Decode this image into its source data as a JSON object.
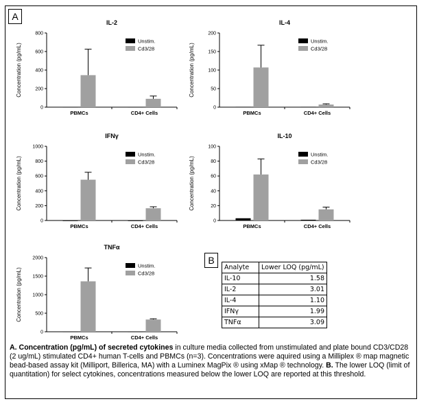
{
  "figure": {
    "panel_a_tag": "A",
    "panel_b_tag": "B"
  },
  "colors": {
    "unstim": "#000000",
    "stim": "#a0a0a0",
    "axis": "#000000"
  },
  "chart_data": [
    {
      "type": "bar",
      "title": "IL-2",
      "ylabel": "Concentration (pg/mL)",
      "xlabel": "",
      "categories": [
        "PBMCs",
        "CD4+ Cells"
      ],
      "ylim": [
        0,
        800
      ],
      "yticks": [
        0,
        200,
        400,
        600,
        800
      ],
      "legend_position": "top-right",
      "series": [
        {
          "name": "Unstim.",
          "values": [
            2,
            2
          ],
          "errors": [
            0,
            0
          ]
        },
        {
          "name": "Cd3/28",
          "values": [
            345,
            90
          ],
          "errors": [
            280,
            30
          ]
        }
      ]
    },
    {
      "type": "bar",
      "title": "IL-4",
      "ylabel": "Concentration (pg/mL)",
      "xlabel": "",
      "categories": [
        "PBMCs",
        "CD4+ Cells"
      ],
      "ylim": [
        0,
        200
      ],
      "yticks": [
        0,
        50,
        100,
        150,
        200
      ],
      "legend_position": "top-right",
      "series": [
        {
          "name": "Unstim.",
          "values": [
            1,
            1
          ],
          "errors": [
            0,
            0
          ]
        },
        {
          "name": "Cd3/28",
          "values": [
            107,
            7
          ],
          "errors": [
            60,
            2
          ]
        }
      ]
    },
    {
      "type": "bar",
      "title": "IFNγ",
      "ylabel": "Concentration (pg/mL)",
      "xlabel": "",
      "categories": [
        "PBMCs",
        "CD4+ Cells"
      ],
      "ylim": [
        0,
        1000
      ],
      "yticks": [
        0,
        200,
        400,
        600,
        800,
        1000
      ],
      "legend_position": "top-right",
      "series": [
        {
          "name": "Unstim.",
          "values": [
            0,
            0
          ],
          "errors": [
            0,
            0
          ]
        },
        {
          "name": "Cd3/28",
          "values": [
            550,
            165
          ],
          "errors": [
            100,
            20
          ]
        }
      ]
    },
    {
      "type": "bar",
      "title": "IL-10",
      "ylabel": "Concentration (pg/mL)",
      "xlabel": "",
      "categories": [
        "PBMCs",
        "CD4+ Cells"
      ],
      "ylim": [
        0,
        100
      ],
      "yticks": [
        0,
        20,
        40,
        60,
        80,
        100
      ],
      "legend_position": "top-right",
      "series": [
        {
          "name": "Unstim.",
          "values": [
            3,
            1
          ],
          "errors": [
            0,
            0
          ]
        },
        {
          "name": "Cd3/28",
          "values": [
            62,
            15
          ],
          "errors": [
            21,
            3
          ]
        }
      ]
    },
    {
      "type": "bar",
      "title": "TNFα",
      "ylabel": "Concentration (pg/mL)",
      "xlabel": "",
      "categories": [
        "PBMCs",
        "CD4+ Cells"
      ],
      "ylim": [
        0,
        2000
      ],
      "yticks": [
        0,
        500,
        1000,
        1500,
        2000
      ],
      "legend_position": "top-right",
      "series": [
        {
          "name": "Unstim.",
          "values": [
            5,
            5
          ],
          "errors": [
            0,
            0
          ]
        },
        {
          "name": "Cd3/28",
          "values": [
            1360,
            330
          ],
          "errors": [
            360,
            20
          ]
        }
      ]
    }
  ],
  "loq_table": {
    "headers": [
      "Analyte",
      "Lower LOQ (pg/mL)"
    ],
    "rows": [
      {
        "analyte": "IL-10",
        "value": "1.58"
      },
      {
        "analyte": "IL-2",
        "value": "3.01"
      },
      {
        "analyte": "IL-4",
        "value": "1.10"
      },
      {
        "analyte": "IFNγ",
        "value": "1.99"
      },
      {
        "analyte": "TNFα",
        "value": "3.09"
      }
    ]
  },
  "caption": {
    "a_label": "A. Concentration (pg/mL) of secreted cytokines",
    "a_text": " in culture media collected from unstimulated and plate bound CD3/CD28 (2 ug/mL) stimulated CD4+ human T-cells and PBMCs (n=3). Concentrations were aquired using a Milliplex  ® map magnetic bead-based assay kit (Milliport, Billerica,  MA) with a Luminex MagPix  ® using xMap ® technology.  ",
    "b_label": "B.",
    "b_text": " The lower LOQ (limit of quantitation) for select cytokines, concentrations measured below the lower LOQ are reported at this threshold."
  }
}
